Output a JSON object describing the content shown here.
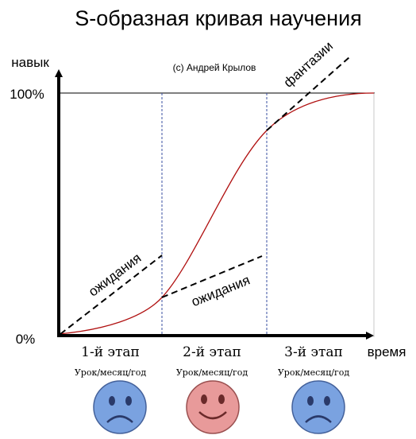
{
  "diagram": {
    "title": "S-образная кривая научения",
    "credit": "(c) Андрей Крылов",
    "y_axis_label": "навык",
    "x_axis_label": "время",
    "y_tick_top": "100%",
    "y_tick_bottom": "0%",
    "expectation_label_1": "ожидания",
    "expectation_label_2": "ожидания",
    "fantasy_label": "фантазии",
    "stages": [
      {
        "label": "1-й этап",
        "sublabel": "Урок/месяц/год",
        "face": "sad",
        "face_color": "#7aa2e0"
      },
      {
        "label": "2-й этап",
        "sublabel": "Урок/месяц/год",
        "face": "happy",
        "face_color": "#e89a9a"
      },
      {
        "label": "3-й этап",
        "sublabel": "Урок/месяц/год",
        "face": "sad",
        "face_color": "#7aa2e0"
      }
    ],
    "colors": {
      "curve": "#b01010",
      "axes": "#000000",
      "guides": "#3a4fa0",
      "sad_face": "#7aa2e0",
      "happy_face": "#e89a9a"
    }
  }
}
